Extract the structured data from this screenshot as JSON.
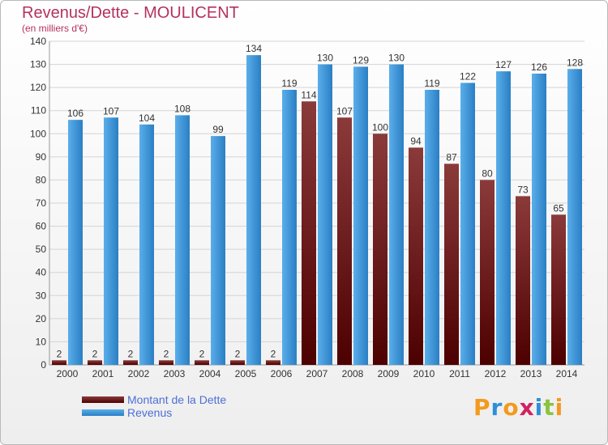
{
  "header": {
    "title": "Revenus/Dette - MOULICENT",
    "subtitle": "(en milliers d'€)"
  },
  "colors": {
    "title": "#b5315e",
    "debt_dark": "#5a0000",
    "debt_light": "#8b3a3a",
    "revenue_dark": "#2a7fc4",
    "revenue_light": "#5aaeea",
    "legend_text": "#4e6fd6",
    "axis_text": "#333333",
    "grid": "#d4d4d4"
  },
  "legend": {
    "items": [
      {
        "label": "Montant de la Dette",
        "color": "#6b0a0a"
      },
      {
        "label": "Revenus",
        "color": "#3d97dd"
      }
    ]
  },
  "logo": {
    "text": "Proxiti",
    "letters": [
      {
        "ch": "P",
        "color": "#f39a1e"
      },
      {
        "ch": "r",
        "color": "#2e8fd6"
      },
      {
        "ch": "o",
        "color": "#f39a1e"
      },
      {
        "ch": "x",
        "color": "#d2215f"
      },
      {
        "ch": "i",
        "color": "#2e8fd6"
      },
      {
        "ch": "t",
        "color": "#8ac43f"
      },
      {
        "ch": "i",
        "color": "#f39a1e"
      }
    ]
  },
  "chart_data": {
    "type": "bar",
    "title": "Revenus/Dette - MOULICENT",
    "subtitle": "(en milliers d'€)",
    "xlabel": "",
    "ylabel": "",
    "ylim": [
      0,
      140
    ],
    "yticks": [
      0,
      10,
      20,
      30,
      40,
      50,
      60,
      70,
      80,
      90,
      100,
      110,
      120,
      130,
      140
    ],
    "grid": true,
    "categories": [
      "2000",
      "2001",
      "2002",
      "2003",
      "2004",
      "2005",
      "2006",
      "2007",
      "2008",
      "2009",
      "2010",
      "2011",
      "2012",
      "2013",
      "2014"
    ],
    "series": [
      {
        "name": "Montant de la Dette",
        "values": [
          2,
          2,
          2,
          2,
          2,
          2,
          2,
          114,
          107,
          100,
          94,
          87,
          80,
          73,
          65
        ]
      },
      {
        "name": "Revenus",
        "values": [
          106,
          107,
          104,
          108,
          99,
          134,
          119,
          130,
          129,
          130,
          119,
          122,
          127,
          126,
          128
        ]
      }
    ]
  }
}
